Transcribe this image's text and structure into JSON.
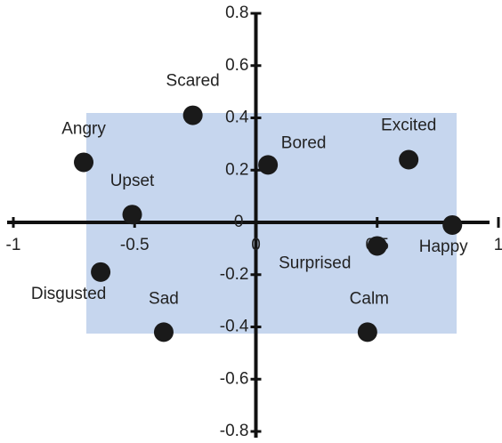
{
  "chart_data": {
    "type": "scatter",
    "labels": [
      "Scared",
      "Angry",
      "Upset",
      "Disgusted",
      "Sad",
      "Bored",
      "Excited",
      "Surprised",
      "Calm",
      "Happy"
    ],
    "x": [
      -0.26,
      -0.71,
      -0.51,
      -0.64,
      -0.38,
      0.05,
      0.63,
      0.5,
      0.46,
      0.81
    ],
    "values": [
      0.41,
      0.23,
      0.03,
      -0.19,
      -0.42,
      0.22,
      0.24,
      -0.09,
      -0.42,
      -0.01
    ],
    "color": "#1a1a1a",
    "xlim": [
      -1,
      1
    ],
    "ylim": [
      -0.8,
      0.8
    ],
    "xticks": [
      -1,
      -0.5,
      0,
      0.5,
      1
    ],
    "yticks": [
      -0.8,
      -0.6,
      -0.4,
      -0.2,
      0,
      0.2,
      0.4,
      0.6,
      0.8
    ]
  }
}
